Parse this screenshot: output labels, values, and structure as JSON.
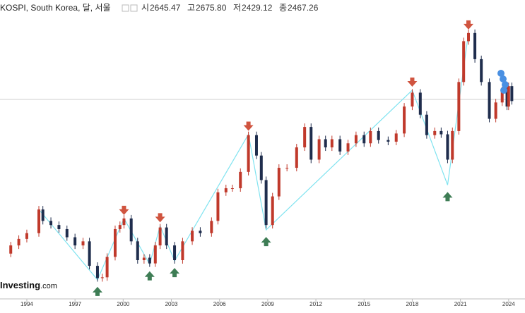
{
  "chart_data": {
    "type": "candlestick",
    "title": "KOSPI, South Korea, 달, 서울",
    "quote": [
      {
        "key": "시",
        "text": "2645.47"
      },
      {
        "key": "고",
        "text": "2675.80"
      },
      {
        "key": "저",
        "text": "2429.12"
      },
      {
        "key": "종",
        "text": "2467.26"
      }
    ],
    "brand": [
      "Investing",
      ".com"
    ],
    "xlim": [
      1992.33,
      2025.02
    ],
    "ylim": [
      80,
      3704
    ],
    "xticks": [
      1994,
      1997,
      2000,
      2003,
      2006,
      2009,
      2012,
      2015,
      2018,
      2021,
      2024
    ],
    "up_color": "#c0392b",
    "down_color": "#1f2d4d",
    "series": [
      {
        "x": [
          1992.5,
          1993.0,
          1993.5,
          1994.0,
          1994.75,
          1995.0,
          1995.5,
          1996.0,
          1996.5,
          1997.0,
          1997.5,
          1997.9,
          1998.4,
          1998.7,
          1999.0,
          1999.5,
          1999.8,
          2000.05,
          2000.5,
          2000.9,
          2001.3,
          2001.65,
          2002.0,
          2002.3,
          2002.7,
          2003.2,
          2003.7,
          2004.3,
          2004.8,
          2005.5,
          2005.9,
          2006.4,
          2006.8,
          2007.3,
          2007.8,
          2008.3,
          2008.6,
          2008.9,
          2009.3,
          2009.7,
          2010.2,
          2010.8,
          2011.3,
          2011.7,
          2012.2,
          2012.6,
          2013.0,
          2013.5,
          2014.0,
          2014.5,
          2015.0,
          2015.4,
          2015.9,
          2016.5,
          2017.0,
          2017.5,
          2018.0,
          2018.5,
          2018.9,
          2019.4,
          2019.8,
          2020.2,
          2020.5,
          2020.9,
          2021.2,
          2021.5,
          2021.9,
          2022.3,
          2022.8,
          2023.2,
          2023.6,
          2023.9,
          2024.0,
          2024.2
        ],
        "values": [
          600,
          700,
          780,
          850,
          1140,
          1000,
          950,
          900,
          800,
          700,
          750,
          450,
          300,
          310,
          560,
          900,
          950,
          1030,
          750,
          520,
          550,
          480,
          700,
          920,
          700,
          520,
          750,
          880,
          850,
          1000,
          1350,
          1400,
          1400,
          1600,
          2050,
          1800,
          1500,
          950,
          1300,
          1650,
          1650,
          1900,
          2150,
          1750,
          2000,
          1900,
          2000,
          1850,
          1950,
          2050,
          1950,
          2100,
          1990,
          1970,
          2070,
          2400,
          2570,
          2300,
          2050,
          2100,
          2060,
          1750,
          2100,
          2700,
          3200,
          3300,
          2980,
          2700,
          2250,
          2450,
          2600,
          2400,
          2650,
          2467
        ]
      }
    ],
    "zigzag": {
      "color": "#7fe3f0",
      "x": [
        1994.75,
        1998.4,
        2000.05,
        2001.65,
        2002.3,
        2003.2,
        2007.8,
        2008.9,
        2018.0,
        2020.2,
        2021.5
      ],
      "values": [
        1140,
        280,
        1030,
        470,
        940,
        510,
        2060,
        890,
        2600,
        1440,
        3300
      ]
    }
  }
}
